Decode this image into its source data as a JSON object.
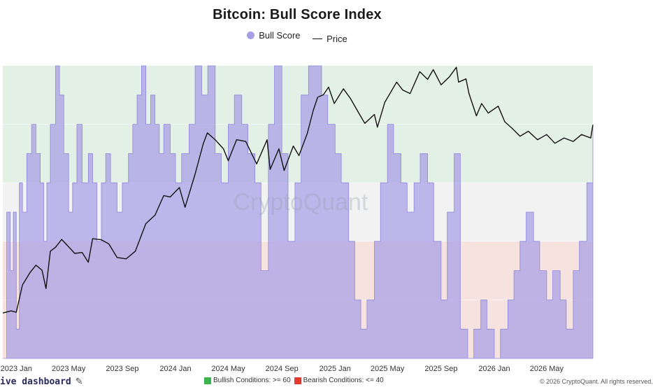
{
  "chart_data": {
    "type": "area",
    "title": "Bitcoin: Bull Score Index",
    "legend": [
      {
        "name": "Bull Score",
        "color": "#a79ee6",
        "marker": "dot"
      },
      {
        "name": "Price",
        "color": "#111111",
        "marker": "line"
      }
    ],
    "legend_placement": "top-center",
    "x_ticks": [
      "2023 Jan",
      "2023 May",
      "2023 Sep",
      "2024 Jan",
      "2024 May",
      "2024 Sep",
      "2025 Jan",
      "2025 May",
      "2025 Sep",
      "2026 Jan",
      "2026 May"
    ],
    "x_range": [
      "2022-12-01",
      "2026-08-15"
    ],
    "y_range": [
      0,
      100
    ],
    "bands": [
      {
        "name": "bullish",
        "from": 60,
        "to": 100,
        "color": "#e3f0e6"
      },
      {
        "name": "neutral",
        "from": 40,
        "to": 60,
        "color": "#f2f2f2"
      },
      {
        "name": "bearish",
        "from": 0,
        "to": 40,
        "color": "#f6e3df"
      }
    ],
    "series": [
      {
        "name": "Bull Score",
        "points": [
          [
            "2022-12-01",
            0
          ],
          [
            "2022-12-10",
            50
          ],
          [
            "2022-12-18",
            30
          ],
          [
            "2022-12-25",
            50
          ],
          [
            "2023-01-01",
            10
          ],
          [
            "2023-01-08",
            60
          ],
          [
            "2023-01-15",
            50
          ],
          [
            "2023-01-25",
            70
          ],
          [
            "2023-02-05",
            80
          ],
          [
            "2023-02-15",
            70
          ],
          [
            "2023-02-25",
            60
          ],
          [
            "2023-03-05",
            40
          ],
          [
            "2023-03-12",
            60
          ],
          [
            "2023-03-20",
            80
          ],
          [
            "2023-04-01",
            100
          ],
          [
            "2023-04-10",
            90
          ],
          [
            "2023-04-20",
            70
          ],
          [
            "2023-05-01",
            50
          ],
          [
            "2023-05-10",
            60
          ],
          [
            "2023-05-20",
            80
          ],
          [
            "2023-06-01",
            60
          ],
          [
            "2023-06-15",
            70
          ],
          [
            "2023-06-25",
            60
          ],
          [
            "2023-07-05",
            40
          ],
          [
            "2023-07-15",
            60
          ],
          [
            "2023-07-25",
            70
          ],
          [
            "2023-08-05",
            60
          ],
          [
            "2023-08-20",
            50
          ],
          [
            "2023-09-01",
            60
          ],
          [
            "2023-09-15",
            70
          ],
          [
            "2023-09-25",
            80
          ],
          [
            "2023-10-05",
            90
          ],
          [
            "2023-10-15",
            100
          ],
          [
            "2023-10-25",
            80
          ],
          [
            "2023-11-05",
            90
          ],
          [
            "2023-11-15",
            80
          ],
          [
            "2023-11-25",
            70
          ],
          [
            "2023-12-05",
            80
          ],
          [
            "2023-12-20",
            70
          ],
          [
            "2024-01-01",
            60
          ],
          [
            "2024-01-15",
            70
          ],
          [
            "2024-02-01",
            80
          ],
          [
            "2024-02-15",
            100
          ],
          [
            "2024-03-01",
            90
          ],
          [
            "2024-03-15",
            100
          ],
          [
            "2024-04-01",
            70
          ],
          [
            "2024-04-15",
            60
          ],
          [
            "2024-05-01",
            80
          ],
          [
            "2024-05-15",
            90
          ],
          [
            "2024-06-01",
            80
          ],
          [
            "2024-06-15",
            70
          ],
          [
            "2024-07-01",
            60
          ],
          [
            "2024-07-15",
            30
          ],
          [
            "2024-08-01",
            80
          ],
          [
            "2024-08-15",
            100
          ],
          [
            "2024-09-01",
            70
          ],
          [
            "2024-09-15",
            40
          ],
          [
            "2024-10-01",
            60
          ],
          [
            "2024-10-15",
            90
          ],
          [
            "2024-11-01",
            100
          ],
          [
            "2024-11-15",
            100
          ],
          [
            "2024-12-01",
            90
          ],
          [
            "2024-12-15",
            80
          ],
          [
            "2025-01-01",
            70
          ],
          [
            "2025-01-15",
            60
          ],
          [
            "2025-02-01",
            40
          ],
          [
            "2025-02-15",
            20
          ],
          [
            "2025-03-01",
            10
          ],
          [
            "2025-03-15",
            20
          ],
          [
            "2025-04-01",
            40
          ],
          [
            "2025-04-15",
            60
          ],
          [
            "2025-05-01",
            80
          ],
          [
            "2025-05-15",
            70
          ],
          [
            "2025-06-01",
            60
          ],
          [
            "2025-06-15",
            50
          ],
          [
            "2025-07-01",
            60
          ],
          [
            "2025-07-15",
            70
          ],
          [
            "2025-08-01",
            60
          ],
          [
            "2025-08-15",
            40
          ],
          [
            "2025-09-01",
            20
          ],
          [
            "2025-09-15",
            50
          ],
          [
            "2025-10-01",
            70
          ],
          [
            "2025-10-15",
            10
          ],
          [
            "2025-11-01",
            0
          ],
          [
            "2025-11-15",
            10
          ],
          [
            "2025-12-01",
            20
          ],
          [
            "2025-12-15",
            10
          ],
          [
            "2026-01-01",
            0
          ],
          [
            "2026-01-15",
            10
          ],
          [
            "2026-02-01",
            20
          ],
          [
            "2026-02-15",
            30
          ],
          [
            "2026-03-01",
            40
          ],
          [
            "2026-03-15",
            50
          ],
          [
            "2026-04-01",
            40
          ],
          [
            "2026-04-15",
            30
          ],
          [
            "2026-05-01",
            20
          ],
          [
            "2026-05-15",
            30
          ],
          [
            "2026-06-01",
            20
          ],
          [
            "2026-06-15",
            10
          ],
          [
            "2026-07-01",
            30
          ],
          [
            "2026-07-15",
            40
          ],
          [
            "2026-08-01",
            60
          ],
          [
            "2026-08-15",
            80
          ]
        ]
      },
      {
        "name": "Price",
        "points": [
          [
            "2022-12-01",
            16500
          ],
          [
            "2022-12-20",
            16800
          ],
          [
            "2023-01-01",
            16600
          ],
          [
            "2023-01-15",
            20800
          ],
          [
            "2023-02-01",
            23000
          ],
          [
            "2023-02-15",
            24500
          ],
          [
            "2023-03-01",
            23500
          ],
          [
            "2023-03-10",
            20200
          ],
          [
            "2023-03-20",
            27500
          ],
          [
            "2023-04-01",
            28400
          ],
          [
            "2023-04-15",
            30300
          ],
          [
            "2023-05-01",
            28500
          ],
          [
            "2023-05-15",
            27000
          ],
          [
            "2023-06-01",
            27200
          ],
          [
            "2023-06-15",
            25100
          ],
          [
            "2023-06-25",
            30500
          ],
          [
            "2023-07-15",
            30200
          ],
          [
            "2023-08-01",
            29200
          ],
          [
            "2023-08-20",
            26100
          ],
          [
            "2023-09-10",
            25800
          ],
          [
            "2023-10-01",
            27500
          ],
          [
            "2023-10-25",
            34500
          ],
          [
            "2023-11-15",
            37000
          ],
          [
            "2023-12-05",
            43500
          ],
          [
            "2023-12-20",
            43000
          ],
          [
            "2024-01-10",
            46500
          ],
          [
            "2024-01-23",
            39500
          ],
          [
            "2024-02-15",
            52000
          ],
          [
            "2024-03-05",
            67000
          ],
          [
            "2024-03-14",
            73000
          ],
          [
            "2024-04-01",
            69000
          ],
          [
            "2024-04-20",
            64000
          ],
          [
            "2024-05-01",
            58000
          ],
          [
            "2024-05-20",
            69000
          ],
          [
            "2024-06-10",
            68000
          ],
          [
            "2024-07-05",
            56500
          ],
          [
            "2024-07-29",
            69000
          ],
          [
            "2024-08-05",
            54000
          ],
          [
            "2024-08-25",
            64000
          ],
          [
            "2024-09-06",
            53500
          ],
          [
            "2024-09-27",
            65500
          ],
          [
            "2024-10-10",
            60500
          ],
          [
            "2024-10-29",
            72500
          ],
          [
            "2024-11-12",
            88000
          ],
          [
            "2024-11-22",
            98000
          ],
          [
            "2024-12-05",
            100000
          ],
          [
            "2024-12-17",
            106500
          ],
          [
            "2024-12-30",
            93000
          ],
          [
            "2025-01-20",
            105000
          ],
          [
            "2025-02-05",
            97000
          ],
          [
            "2025-02-28",
            84000
          ],
          [
            "2025-03-10",
            79000
          ],
          [
            "2025-04-01",
            85000
          ],
          [
            "2025-04-08",
            76500
          ],
          [
            "2025-04-25",
            94000
          ],
          [
            "2025-05-22",
            111000
          ],
          [
            "2025-06-05",
            104000
          ],
          [
            "2025-06-22",
            101000
          ],
          [
            "2025-07-14",
            121000
          ],
          [
            "2025-08-01",
            113500
          ],
          [
            "2025-08-14",
            123000
          ],
          [
            "2025-09-01",
            108500
          ],
          [
            "2025-09-20",
            116000
          ],
          [
            "2025-10-06",
            125500
          ],
          [
            "2025-10-11",
            111000
          ],
          [
            "2025-10-28",
            114000
          ],
          [
            "2025-11-04",
            101000
          ],
          [
            "2025-11-21",
            84000
          ],
          [
            "2025-12-03",
            93000
          ],
          [
            "2025-12-18",
            86000
          ],
          [
            "2026-01-10",
            91000
          ],
          [
            "2026-01-25",
            80000
          ],
          [
            "2026-02-10",
            76000
          ],
          [
            "2026-03-01",
            71000
          ],
          [
            "2026-03-20",
            74000
          ],
          [
            "2026-04-10",
            69000
          ],
          [
            "2026-05-01",
            72000
          ],
          [
            "2026-05-20",
            67000
          ],
          [
            "2026-06-10",
            70000
          ],
          [
            "2026-07-01",
            68000
          ],
          [
            "2026-07-20",
            72000
          ],
          [
            "2026-08-10",
            70000
          ],
          [
            "2026-08-15",
            78000
          ]
        ]
      }
    ]
  },
  "watermark": "CryptoQuant",
  "footer": {
    "left_text": "ive dashboard",
    "bullish_label": "Bullish Conditions: >= 60",
    "bullish_color": "#3cb44b",
    "bearish_label": "Bearish Conditions: <= 40",
    "bearish_color": "#e03c31",
    "right_text": "© 2026 CryptoQuant. All rights reserved."
  }
}
